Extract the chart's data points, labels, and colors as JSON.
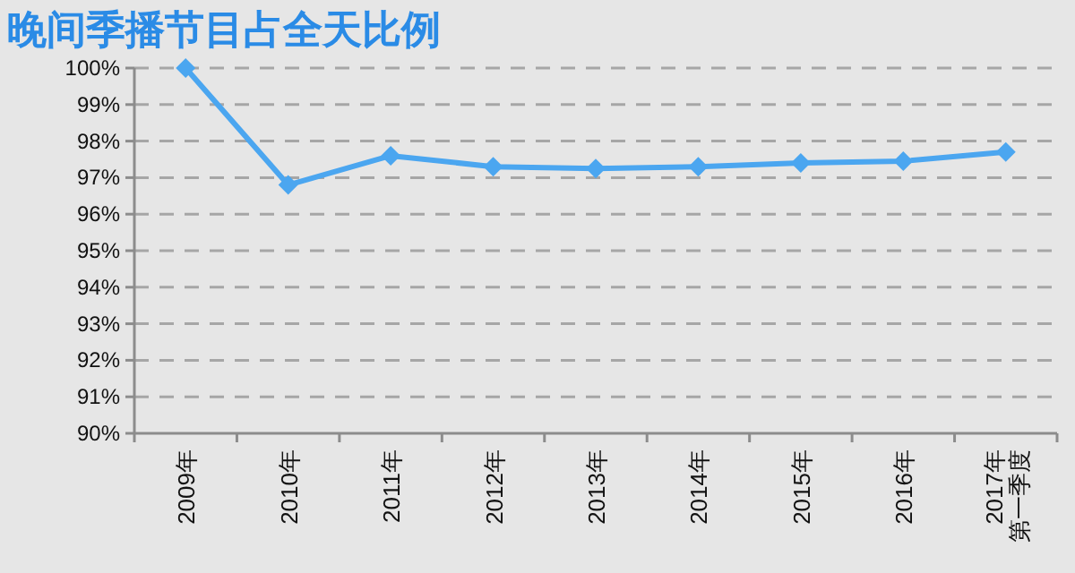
{
  "chart_data": {
    "type": "line",
    "title": "晚间季播节目占全天比例",
    "categories": [
      "2009年",
      "2010年",
      "2011年",
      "2012年",
      "2013年",
      "2014年",
      "2015年",
      "2016年",
      "2017年第一季度"
    ],
    "series": [
      {
        "color": "#4ba6f0",
        "values": [
          100,
          96.8,
          97.6,
          97.3,
          97.25,
          97.3,
          97.4,
          97.45,
          97.7
        ]
      }
    ],
    "ylim": [
      90,
      100
    ],
    "yticks": [
      {
        "value": 90,
        "label": "90%"
      },
      {
        "value": 91,
        "label": "91%"
      },
      {
        "value": 92,
        "label": "92%"
      },
      {
        "value": 93,
        "label": "93%"
      },
      {
        "value": 94,
        "label": "94%"
      },
      {
        "value": 95,
        "label": "95%"
      },
      {
        "value": 96,
        "label": "96%"
      },
      {
        "value": 97,
        "label": "97%"
      },
      {
        "value": 98,
        "label": "98%"
      },
      {
        "value": 99,
        "label": "99%"
      },
      {
        "value": 100,
        "label": "100%"
      }
    ],
    "grid": "y",
    "marker": "diamond",
    "line_style": "solid"
  }
}
